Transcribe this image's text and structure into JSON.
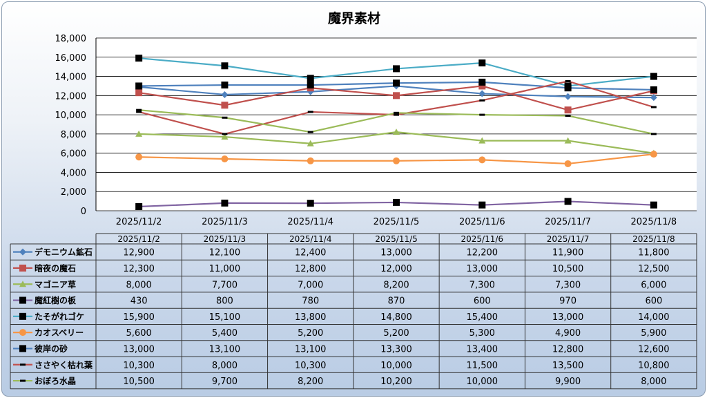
{
  "chart_data": {
    "type": "line",
    "title": "魔界素材",
    "xlabel": "",
    "ylabel": "",
    "ylim": [
      0,
      18000
    ],
    "yticks": [
      "0",
      "2,000",
      "4,000",
      "6,000",
      "8,000",
      "10,000",
      "12,000",
      "14,000",
      "16,000",
      "18,000"
    ],
    "categories": [
      "2025/11/2",
      "2025/11/3",
      "2025/11/4",
      "2025/11/5",
      "2025/11/6",
      "2025/11/7",
      "2025/11/8"
    ],
    "grid": true,
    "legend": "data-table",
    "series": [
      {
        "name": "デモニウム鉱石",
        "color": "#4F81BD",
        "marker": "diamond",
        "values": [
          12900,
          12100,
          12400,
          13000,
          12200,
          11900,
          11800
        ],
        "labels": [
          "12,900",
          "12,100",
          "12,400",
          "13,000",
          "12,200",
          "11,900",
          "11,800"
        ]
      },
      {
        "name": "暗夜の魔石",
        "color": "#C0504D",
        "marker": "square",
        "values": [
          12300,
          11000,
          12800,
          12000,
          13000,
          10500,
          12500
        ],
        "labels": [
          "12,300",
          "11,000",
          "12,800",
          "12,000",
          "13,000",
          "10,500",
          "12,500"
        ]
      },
      {
        "name": "マゴニア草",
        "color": "#9BBB59",
        "marker": "triangle",
        "values": [
          8000,
          7700,
          7000,
          8200,
          7300,
          7300,
          6000
        ],
        "labels": [
          "8,000",
          "7,700",
          "7,000",
          "8,200",
          "7,300",
          "7,300",
          "6,000"
        ]
      },
      {
        "name": "魔紅樹の板",
        "color": "#8064A2",
        "marker": "blacksquare",
        "values": [
          430,
          800,
          780,
          870,
          600,
          970,
          600
        ],
        "labels": [
          "430",
          "800",
          "780",
          "870",
          "600",
          "970",
          "600"
        ]
      },
      {
        "name": "たそがれゴケ",
        "color": "#4BACC6",
        "marker": "blacksquare",
        "values": [
          15900,
          15100,
          13800,
          14800,
          15400,
          13000,
          14000
        ],
        "labels": [
          "15,900",
          "15,100",
          "13,800",
          "14,800",
          "15,400",
          "13,000",
          "14,000"
        ]
      },
      {
        "name": "カオスベリー",
        "color": "#F79646",
        "marker": "circle",
        "values": [
          5600,
          5400,
          5200,
          5200,
          5300,
          4900,
          5900
        ],
        "labels": [
          "5,600",
          "5,400",
          "5,200",
          "5,200",
          "5,300",
          "4,900",
          "5,900"
        ]
      },
      {
        "name": "彼岸の砂",
        "color": "#4F81BD",
        "marker": "blacksquare",
        "values": [
          13000,
          13100,
          13100,
          13300,
          13400,
          12800,
          12600
        ],
        "labels": [
          "13,000",
          "13,100",
          "13,100",
          "13,300",
          "13,400",
          "12,800",
          "12,600"
        ]
      },
      {
        "name": "ささやく枯れ葉",
        "color": "#C0504D",
        "marker": "dash",
        "values": [
          10300,
          8000,
          10300,
          10000,
          11500,
          13500,
          10800
        ],
        "labels": [
          "10,300",
          "8,000",
          "10,300",
          "10,000",
          "11,500",
          "13,500",
          "10,800"
        ]
      },
      {
        "name": "おぼろ水晶",
        "color": "#9BBB59",
        "marker": "dash",
        "values": [
          10500,
          9700,
          8200,
          10200,
          10000,
          9900,
          8000
        ],
        "labels": [
          "10,500",
          "9,700",
          "8,200",
          "10,200",
          "10,000",
          "9,900",
          "8,000"
        ]
      }
    ]
  }
}
